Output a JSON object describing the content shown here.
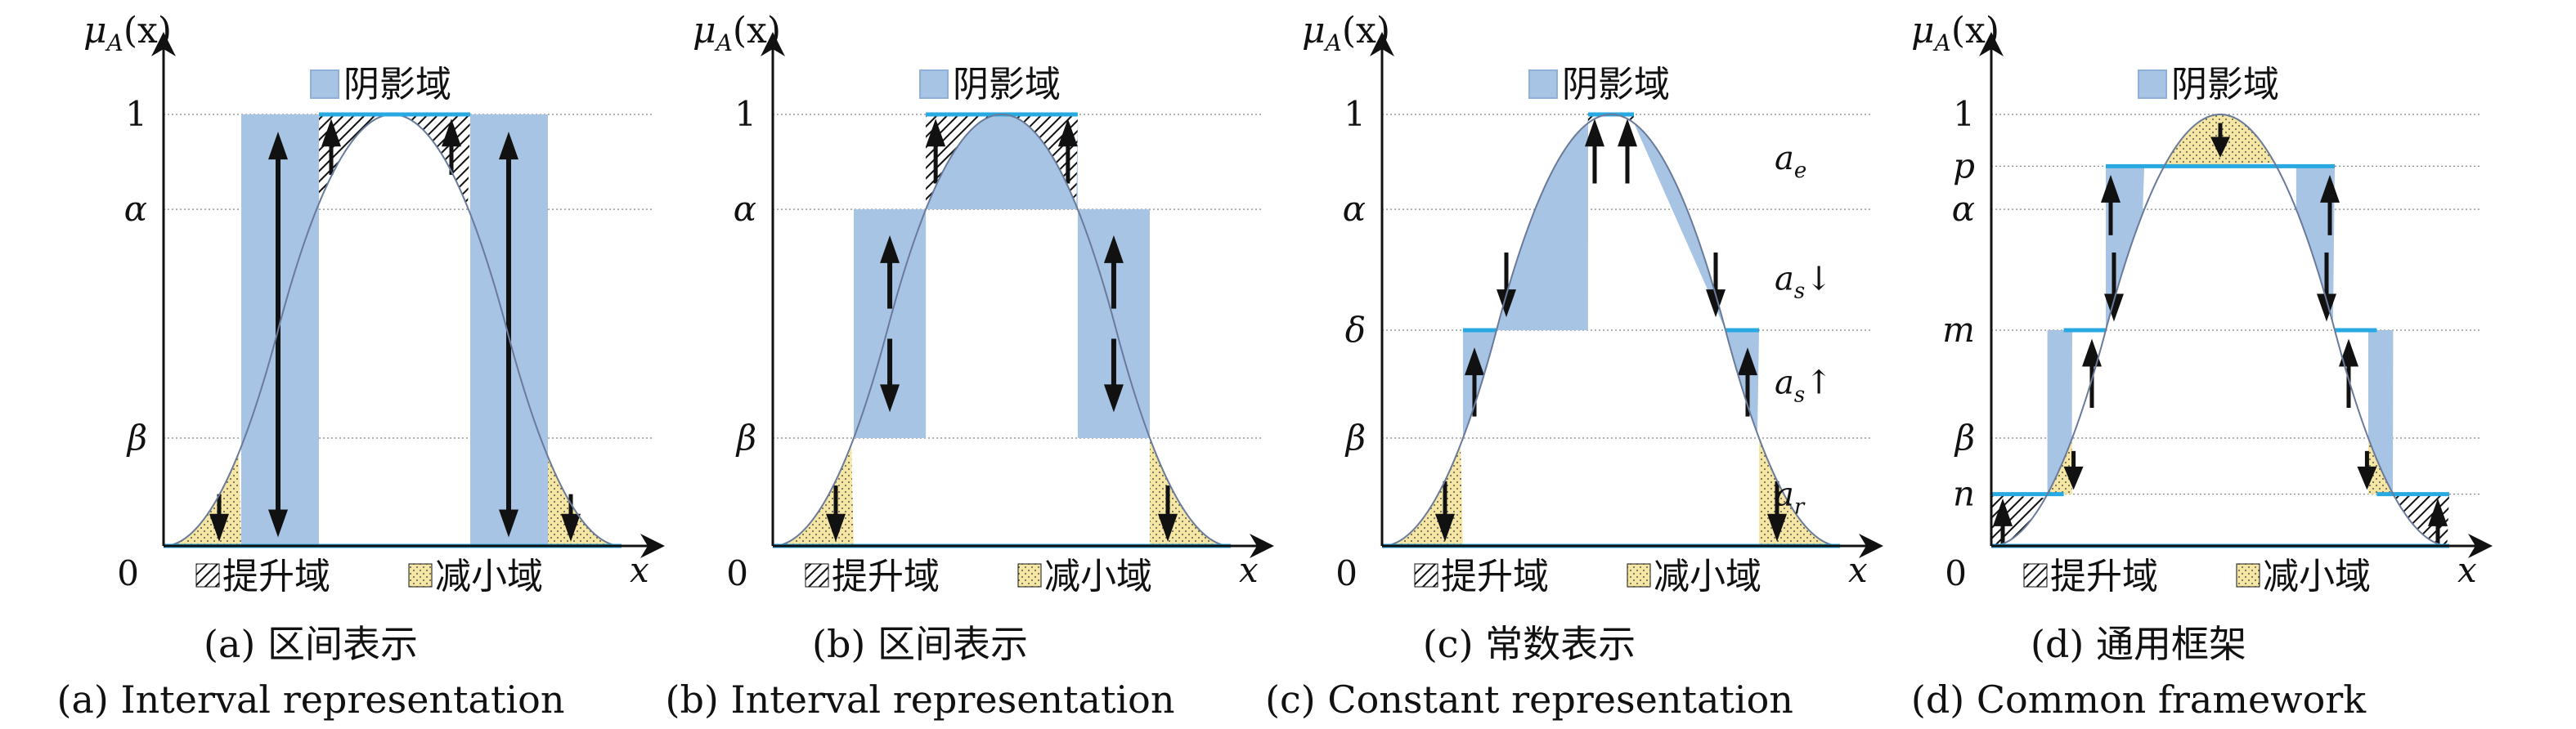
{
  "colors": {
    "shadow_fill": "#a8c4e4",
    "shadow_stroke": "#8fb0d8",
    "reduce_fill": "#f6e6a4",
    "level_line": "#29a9e1",
    "curve": "#6a7a9a",
    "axis": "#111111",
    "grid": "#888888"
  },
  "common": {
    "y_axis_label": "μA(x)",
    "y_axis_label_main": "μ",
    "y_axis_label_sub": "A",
    "y_axis_label_arg": "(x)",
    "x_axis_label": "x",
    "origin_label": "0",
    "legend_shadow": "阴影域",
    "legend_raise": "提升域",
    "legend_reduce": "减小域"
  },
  "panels": [
    {
      "id": "a",
      "caption_cn": "(a) 区间表示",
      "caption_en": "(a) Interval representation",
      "y_ticks": [
        {
          "label": "1",
          "value": 1
        },
        {
          "label": "α",
          "value": 0.78
        },
        {
          "label": "β",
          "value": 0.25
        }
      ],
      "side_labels": []
    },
    {
      "id": "b",
      "caption_cn": "(b) 区间表示",
      "caption_en": "(b) Interval representation",
      "y_ticks": [
        {
          "label": "1",
          "value": 1
        },
        {
          "label": "α",
          "value": 0.78
        },
        {
          "label": "β",
          "value": 0.25
        }
      ],
      "side_labels": []
    },
    {
      "id": "c",
      "caption_cn": "(c) 常数表示",
      "caption_en": "(c) Constant representation",
      "y_ticks": [
        {
          "label": "1",
          "value": 1
        },
        {
          "label": "α",
          "value": 0.78
        },
        {
          "label": "δ",
          "value": 0.5
        },
        {
          "label": "β",
          "value": 0.25
        }
      ],
      "side_labels": [
        {
          "main": "a",
          "sub": "e",
          "arrow": ""
        },
        {
          "main": "a",
          "sub": "s",
          "arrow": "↓"
        },
        {
          "main": "a",
          "sub": "s",
          "arrow": "↑"
        },
        {
          "main": "a",
          "sub": "r",
          "arrow": ""
        }
      ]
    },
    {
      "id": "d",
      "caption_cn": "(d) 通用框架",
      "caption_en": "(d) Common framework",
      "y_ticks": [
        {
          "label": "1",
          "value": 1
        },
        {
          "label": "p",
          "value": 0.88
        },
        {
          "label": "α",
          "value": 0.78
        },
        {
          "label": "m",
          "value": 0.5
        },
        {
          "label": "β",
          "value": 0.25
        },
        {
          "label": "n",
          "value": 0.12
        }
      ],
      "side_labels": []
    }
  ]
}
